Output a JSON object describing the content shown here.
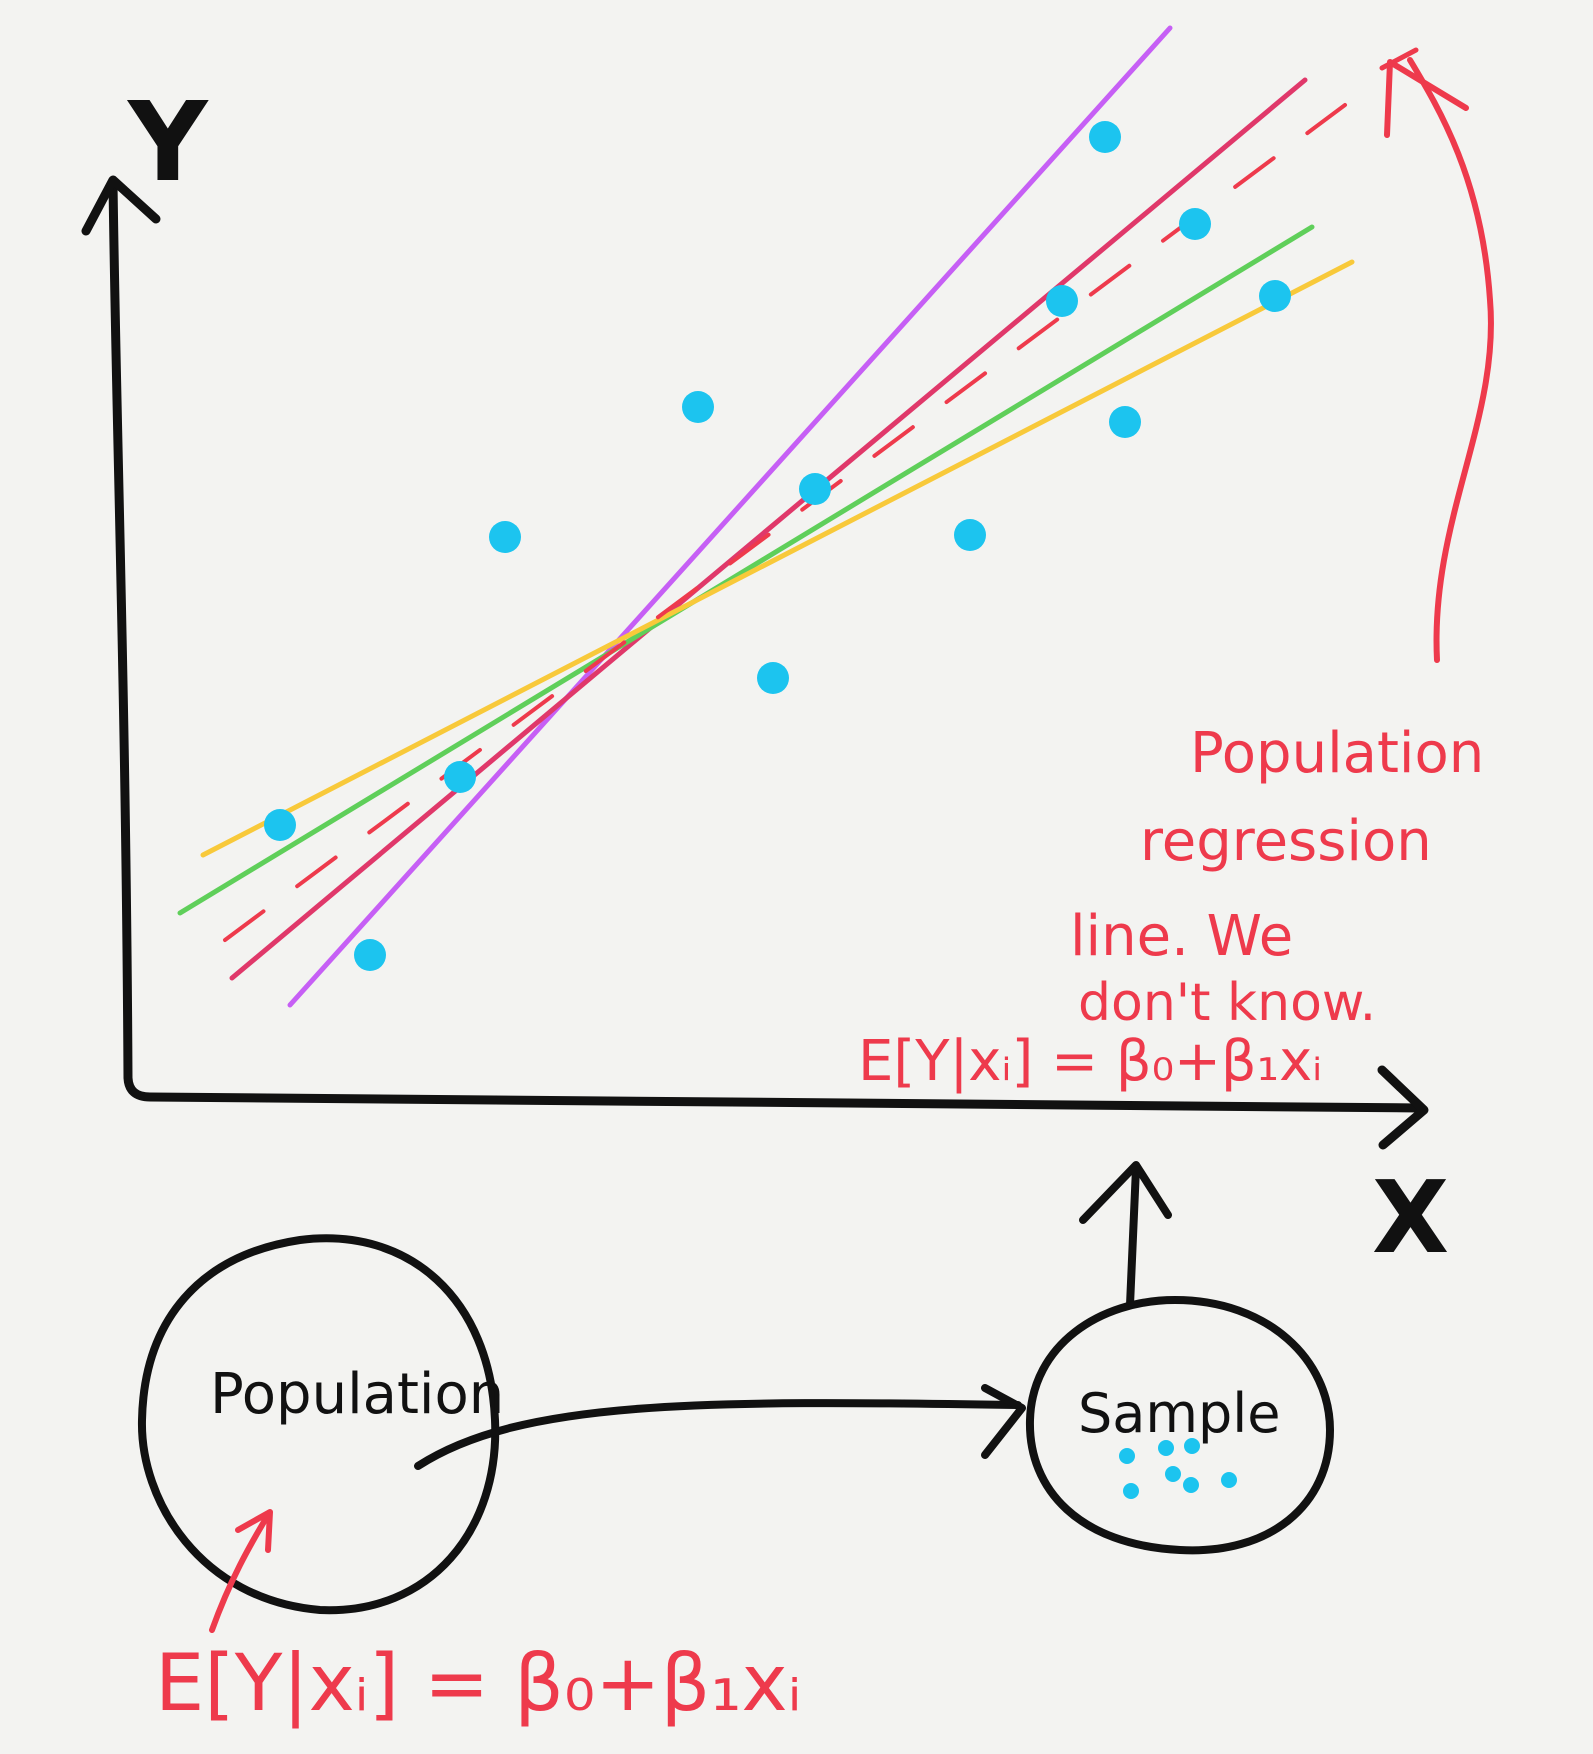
{
  "colors": {
    "background": "#f3f3f1",
    "ink_black": "#111111",
    "ink_red": "#ee3a4c",
    "points": "#1cc4ef",
    "line_purple": "#c65ff5",
    "line_pink": "#e0386a",
    "line_green": "#5fcf5a",
    "line_yellow": "#f8c93a",
    "line_red_dashed": "#ee3a4c"
  },
  "axes": {
    "y_label": "Y",
    "x_label": "X"
  },
  "annotation": {
    "lines": [
      "Population",
      "regression",
      "line. We",
      "don't know."
    ],
    "equation_top": "E[Y|xᵢ] = β₀+β₁xᵢ"
  },
  "population_node": {
    "label": "Population",
    "equation": "E[Y|xᵢ] = β₀+β₁xᵢ"
  },
  "sample_node": {
    "label": "Sample"
  },
  "chart_data": {
    "type": "scatter",
    "points": [
      [
        1105,
        137
      ],
      [
        1195,
        224
      ],
      [
        1062,
        301
      ],
      [
        1275,
        296
      ],
      [
        698,
        407
      ],
      [
        1125,
        422
      ],
      [
        815,
        489
      ],
      [
        505,
        537
      ],
      [
        970,
        535
      ],
      [
        773,
        678
      ],
      [
        460,
        777
      ],
      [
        280,
        825
      ],
      [
        370,
        955
      ]
    ],
    "lines": [
      {
        "name": "",
        "color": "#c65ff5",
        "style": "solid",
        "from": [
          290,
          1005
        ],
        "to": [
          1170,
          28
        ]
      },
      {
        "name": "",
        "color": "#e0386a",
        "style": "solid",
        "from": [
          232,
          978
        ],
        "to": [
          1305,
          80
        ]
      },
      {
        "name": "",
        "color": "#5fcf5a",
        "style": "solid",
        "from": [
          180,
          913
        ],
        "to": [
          1312,
          227
        ]
      },
      {
        "name": "",
        "color": "#f8c93a",
        "style": "solid",
        "from": [
          203,
          855
        ],
        "to": [
          1352,
          262
        ]
      },
      {
        "name": "",
        "color": "#ee3a4c",
        "style": "dashed",
        "from": [
          225,
          940
        ],
        "to": [
          1345,
          105
        ]
      }
    ],
    "sample_dots": [
      [
        1127,
        1456
      ],
      [
        1166,
        1448
      ],
      [
        1192,
        1446
      ],
      [
        1173,
        1474
      ],
      [
        1191,
        1485
      ],
      [
        1131,
        1491
      ],
      [
        1229,
        1480
      ]
    ]
  }
}
